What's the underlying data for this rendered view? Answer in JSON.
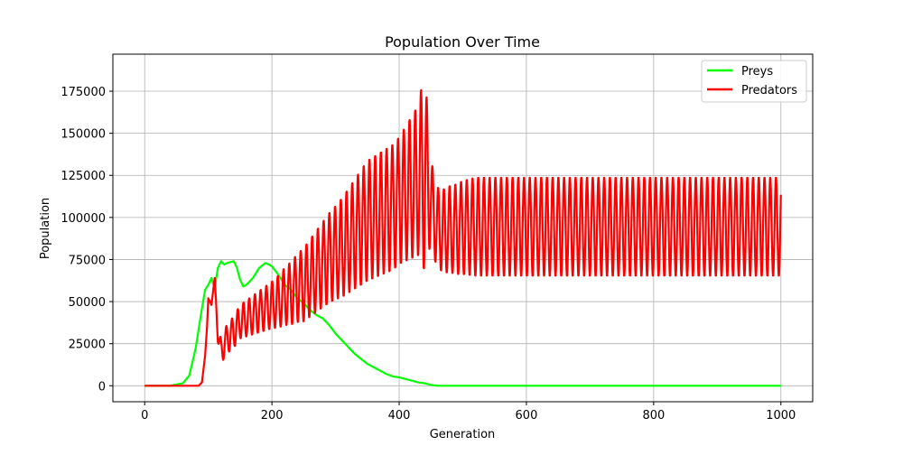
{
  "chart_data": {
    "type": "line",
    "title": "Population Over Time",
    "xlabel": "Generation",
    "ylabel": "Population",
    "xlim": [
      -50,
      1050
    ],
    "ylim": [
      -9500,
      197000
    ],
    "xticks": [
      0,
      200,
      400,
      600,
      800,
      1000
    ],
    "yticks": [
      0,
      25000,
      50000,
      75000,
      100000,
      125000,
      150000,
      175000
    ],
    "grid": true,
    "legend_position": "top-right",
    "series": [
      {
        "name": "Preys",
        "color": "#00ff00",
        "anchors": [
          [
            0,
            0
          ],
          [
            40,
            0
          ],
          [
            60,
            1500
          ],
          [
            70,
            6000
          ],
          [
            80,
            22000
          ],
          [
            90,
            46000
          ],
          [
            95,
            57000
          ],
          [
            100,
            60000
          ],
          [
            105,
            64000
          ],
          [
            110,
            58000
          ],
          [
            115,
            70000
          ],
          [
            120,
            74000
          ],
          [
            125,
            72000
          ],
          [
            130,
            73000
          ],
          [
            140,
            74000
          ],
          [
            145,
            70000
          ],
          [
            150,
            63000
          ],
          [
            155,
            59000
          ],
          [
            160,
            60000
          ],
          [
            170,
            64000
          ],
          [
            180,
            70000
          ],
          [
            190,
            73000
          ],
          [
            200,
            71000
          ],
          [
            210,
            66000
          ],
          [
            220,
            60000
          ],
          [
            230,
            57000
          ],
          [
            240,
            52000
          ],
          [
            250,
            49000
          ],
          [
            260,
            45000
          ],
          [
            270,
            42000
          ],
          [
            280,
            40000
          ],
          [
            290,
            36000
          ],
          [
            300,
            31000
          ],
          [
            310,
            27000
          ],
          [
            320,
            23000
          ],
          [
            330,
            19000
          ],
          [
            340,
            16000
          ],
          [
            350,
            13000
          ],
          [
            360,
            11000
          ],
          [
            370,
            9000
          ],
          [
            380,
            7000
          ],
          [
            390,
            5500
          ],
          [
            400,
            5000
          ],
          [
            410,
            4000
          ],
          [
            420,
            3000
          ],
          [
            430,
            2000
          ],
          [
            440,
            1500
          ],
          [
            450,
            500
          ],
          [
            460,
            0
          ],
          [
            1000,
            0
          ]
        ]
      },
      {
        "name": "Predators",
        "color": "#ff0000",
        "anchors": [
          [
            0,
            0
          ],
          [
            85,
            0
          ],
          [
            90,
            2000
          ],
          [
            95,
            18000
          ],
          [
            98,
            35000
          ],
          [
            100,
            52000
          ],
          [
            105,
            48000
          ],
          [
            110,
            64000
          ],
          [
            115,
            30000
          ],
          [
            120,
            20000
          ],
          [
            125,
            25000
          ],
          [
            130,
            28000
          ],
          [
            140,
            32000
          ],
          [
            150,
            38000
          ],
          [
            160,
            40000
          ],
          [
            170,
            42000
          ],
          [
            180,
            44000
          ],
          [
            190,
            46000
          ],
          [
            200,
            48000
          ],
          [
            210,
            50000
          ],
          [
            220,
            53000
          ],
          [
            230,
            55000
          ],
          [
            240,
            58000
          ],
          [
            250,
            60000
          ],
          [
            260,
            64000
          ],
          [
            270,
            68000
          ],
          [
            280,
            72000
          ],
          [
            290,
            76000
          ],
          [
            300,
            79000
          ],
          [
            310,
            82000
          ],
          [
            320,
            86000
          ],
          [
            330,
            90000
          ],
          [
            340,
            94000
          ],
          [
            350,
            98000
          ],
          [
            360,
            100000
          ],
          [
            370,
            102000
          ],
          [
            380,
            104000
          ],
          [
            390,
            106000
          ],
          [
            400,
            110000
          ],
          [
            410,
            114000
          ],
          [
            420,
            118000
          ],
          [
            430,
            122000
          ],
          [
            440,
            128000
          ],
          [
            450,
            110000
          ],
          [
            455,
            100000
          ],
          [
            460,
            94000
          ],
          [
            470,
            92000
          ],
          [
            480,
            93000
          ],
          [
            490,
            93000
          ],
          [
            500,
            94000
          ],
          [
            520,
            94500
          ],
          [
            1000,
            94500
          ]
        ],
        "amplitude": [
          [
            0,
            0
          ],
          [
            110,
            0
          ],
          [
            120,
            8000
          ],
          [
            150,
            10000
          ],
          [
            200,
            14000
          ],
          [
            250,
            22000
          ],
          [
            300,
            28000
          ],
          [
            350,
            36000
          ],
          [
            400,
            38000
          ],
          [
            430,
            45000
          ],
          [
            440,
            60000
          ],
          [
            450,
            25000
          ],
          [
            460,
            24000
          ],
          [
            480,
            26000
          ],
          [
            500,
            28000
          ],
          [
            520,
            29500
          ],
          [
            1000,
            29500
          ]
        ],
        "period": 9
      }
    ]
  }
}
